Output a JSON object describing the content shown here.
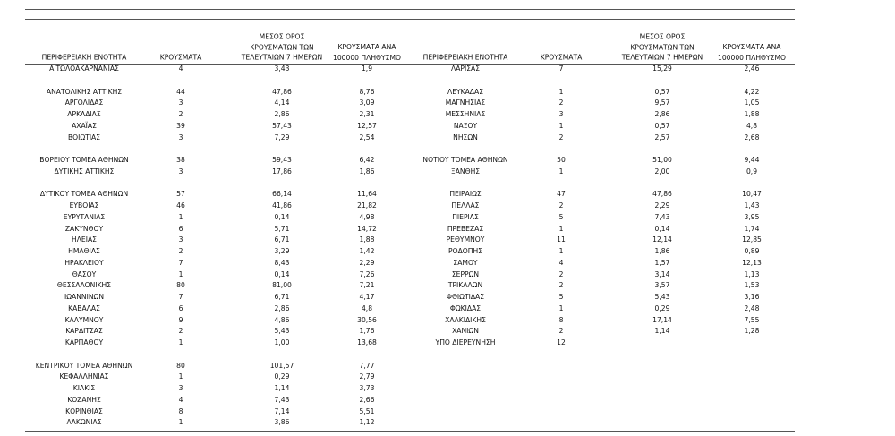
{
  "tables": [
    {
      "header": [
        "ΠΕΡΙΦΕΡΕΙΑΚΗ ΕΝΟΤΗΤΑ",
        "ΚΡΟΥΣΜΑΤΑ",
        "ΜΕΣΟΣ ΟΡΟΣ\nΚΡΟΥΣΜΑΤΩΝ ΤΩΝ\nΤΕΛΕΥΤΑΙΩΝ 7 ΗΜΕΡΩΝ",
        "ΚΡΟΥΣΜΑΤΑ ΑΝΑ\n100000 ΠΛΗΘΥΣΜΟ"
      ],
      "groups": [
        [
          [
            "ΑΙΤΩΛΟΑΚΑΡΝΑΝΙΑΣ",
            "4",
            "3,43",
            "1,9"
          ]
        ],
        [
          [
            "ΑΝΑΤΟΛΙΚΗΣ ΑΤΤΙΚΗΣ",
            "44",
            "47,86",
            "8,76"
          ],
          [
            "ΑΡΓΟΛΙΔΑΣ",
            "3",
            "4,14",
            "3,09"
          ],
          [
            "ΑΡΚΑΔΙΑΣ",
            "2",
            "2,86",
            "2,31"
          ],
          [
            "ΑΧΑΪΑΣ",
            "39",
            "57,43",
            "12,57"
          ],
          [
            "ΒΟΙΩΤΙΑΣ",
            "3",
            "7,29",
            "2,54"
          ]
        ],
        [
          [
            "ΒΟΡΕΙΟΥ ΤΟΜΕΑ ΑΘΗΝΩΝ",
            "38",
            "59,43",
            "6,42"
          ],
          [
            "ΔΥΤΙΚΗΣ ΑΤΤΙΚΗΣ",
            "3",
            "17,86",
            "1,86"
          ]
        ],
        [
          [
            "ΔΥΤΙΚΟΥ ΤΟΜΕΑ ΑΘΗΝΩΝ",
            "57",
            "66,14",
            "11,64"
          ],
          [
            "ΕΥΒΟΙΑΣ",
            "46",
            "41,86",
            "21,82"
          ],
          [
            "ΕΥΡΥΤΑΝΙΑΣ",
            "1",
            "0,14",
            "4,98"
          ],
          [
            "ΖΑΚΥΝΘΟΥ",
            "6",
            "5,71",
            "14,72"
          ],
          [
            "ΗΛΕΙΑΣ",
            "3",
            "6,71",
            "1,88"
          ],
          [
            "ΗΜΑΘΙΑΣ",
            "2",
            "3,29",
            "1,42"
          ],
          [
            "ΗΡΑΚΛΕΙΟΥ",
            "7",
            "8,43",
            "2,29"
          ],
          [
            "ΘΑΣΟΥ",
            "1",
            "0,14",
            "7,26"
          ],
          [
            "ΘΕΣΣΑΛΟΝΙΚΗΣ",
            "80",
            "81,00",
            "7,21"
          ],
          [
            "ΙΩΑΝΝΙΝΩΝ",
            "7",
            "6,71",
            "4,17"
          ],
          [
            "ΚΑΒΑΛΑΣ",
            "6",
            "2,86",
            "4,8"
          ],
          [
            "ΚΑΛΥΜΝΟΥ",
            "9",
            "4,86",
            "30,56"
          ],
          [
            "ΚΑΡΔΙΤΣΑΣ",
            "2",
            "5,43",
            "1,76"
          ],
          [
            "ΚΑΡΠΑΘΟΥ",
            "1",
            "1,00",
            "13,68"
          ]
        ],
        [
          [
            "ΚΕΝΤΡΙΚΟΥ ΤΟΜΕΑ ΑΘΗΝΩΝ",
            "80",
            "101,57",
            "7,77"
          ],
          [
            "ΚΕΦΑΛΛΗΝΙΑΣ",
            "1",
            "0,29",
            "2,79"
          ],
          [
            "ΚΙΛΚΙΣ",
            "3",
            "1,14",
            "3,73"
          ],
          [
            "ΚΟΖΑΝΗΣ",
            "4",
            "7,43",
            "2,66"
          ],
          [
            "ΚΟΡΙΝΘΙΑΣ",
            "8",
            "7,14",
            "5,51"
          ],
          [
            "ΛΑΚΩΝΙΑΣ",
            "1",
            "3,86",
            "1,12"
          ]
        ]
      ]
    },
    {
      "header": [
        "ΠΕΡΙΦΕΡΕΙΑΚΗ ΕΝΟΤΗΤΑ",
        "ΚΡΟΥΣΜΑΤΑ",
        "ΜΕΣΟΣ ΟΡΟΣ\nΚΡΟΥΣΜΑΤΩΝ ΤΩΝ\nΤΕΛΕΥΤΑΙΩΝ 7 ΗΜΕΡΩΝ",
        "ΚΡΟΥΣΜΑΤΑ ΑΝΑ\n100000 ΠΛΗΘΥΣΜΟ"
      ],
      "groups": [
        [
          [
            "ΛΑΡΙΣΑΣ",
            "7",
            "15,29",
            "2,46"
          ]
        ],
        [
          [
            "ΛΕΥΚΑΔΑΣ",
            "1",
            "0,57",
            "4,22"
          ],
          [
            "ΜΑΓΝΗΣΙΑΣ",
            "2",
            "9,57",
            "1,05"
          ],
          [
            "ΜΕΣΣΗΝΙΑΣ",
            "3",
            "2,86",
            "1,88"
          ],
          [
            "ΝΑΞΟΥ",
            "1",
            "0,57",
            "4,8"
          ],
          [
            "ΝΗΣΩΝ",
            "2",
            "2,57",
            "2,68"
          ]
        ],
        [
          [
            "ΝΟΤΙΟΥ ΤΟΜΕΑ ΑΘΗΝΩΝ",
            "50",
            "51,00",
            "9,44"
          ],
          [
            "ΞΑΝΘΗΣ",
            "1",
            "2,00",
            "0,9"
          ]
        ],
        [
          [
            "ΠΕΙΡΑΙΩΣ",
            "47",
            "47,86",
            "10,47"
          ],
          [
            "ΠΕΛΛΑΣ",
            "2",
            "2,29",
            "1,43"
          ],
          [
            "ΠΙΕΡΙΑΣ",
            "5",
            "7,43",
            "3,95"
          ],
          [
            "ΠΡΕΒΕΖΑΣ",
            "1",
            "0,14",
            "1,74"
          ],
          [
            "ΡΕΘΥΜΝΟΥ",
            "11",
            "12,14",
            "12,85"
          ],
          [
            "ΡΟΔΟΠΗΣ",
            "1",
            "1,86",
            "0,89"
          ],
          [
            "ΣΑΜΟΥ",
            "4",
            "1,57",
            "12,13"
          ],
          [
            "ΣΕΡΡΩΝ",
            "2",
            "3,14",
            "1,13"
          ],
          [
            "ΤΡΙΚΑΛΩΝ",
            "2",
            "3,57",
            "1,53"
          ],
          [
            "ΦΘΙΩΤΙΔΑΣ",
            "5",
            "5,43",
            "3,16"
          ],
          [
            "ΦΩΚΙΔΑΣ",
            "1",
            "0,29",
            "2,48"
          ],
          [
            "ΧΑΛΚΙΔΙΚΗΣ",
            "8",
            "17,14",
            "7,55"
          ],
          [
            "ΧΑΝΙΩΝ",
            "2",
            "1,14",
            "1,28"
          ],
          [
            "ΥΠΟ ΔΙΕΡΕΥΝΗΣΗ",
            "12"
          ]
        ]
      ]
    }
  ]
}
